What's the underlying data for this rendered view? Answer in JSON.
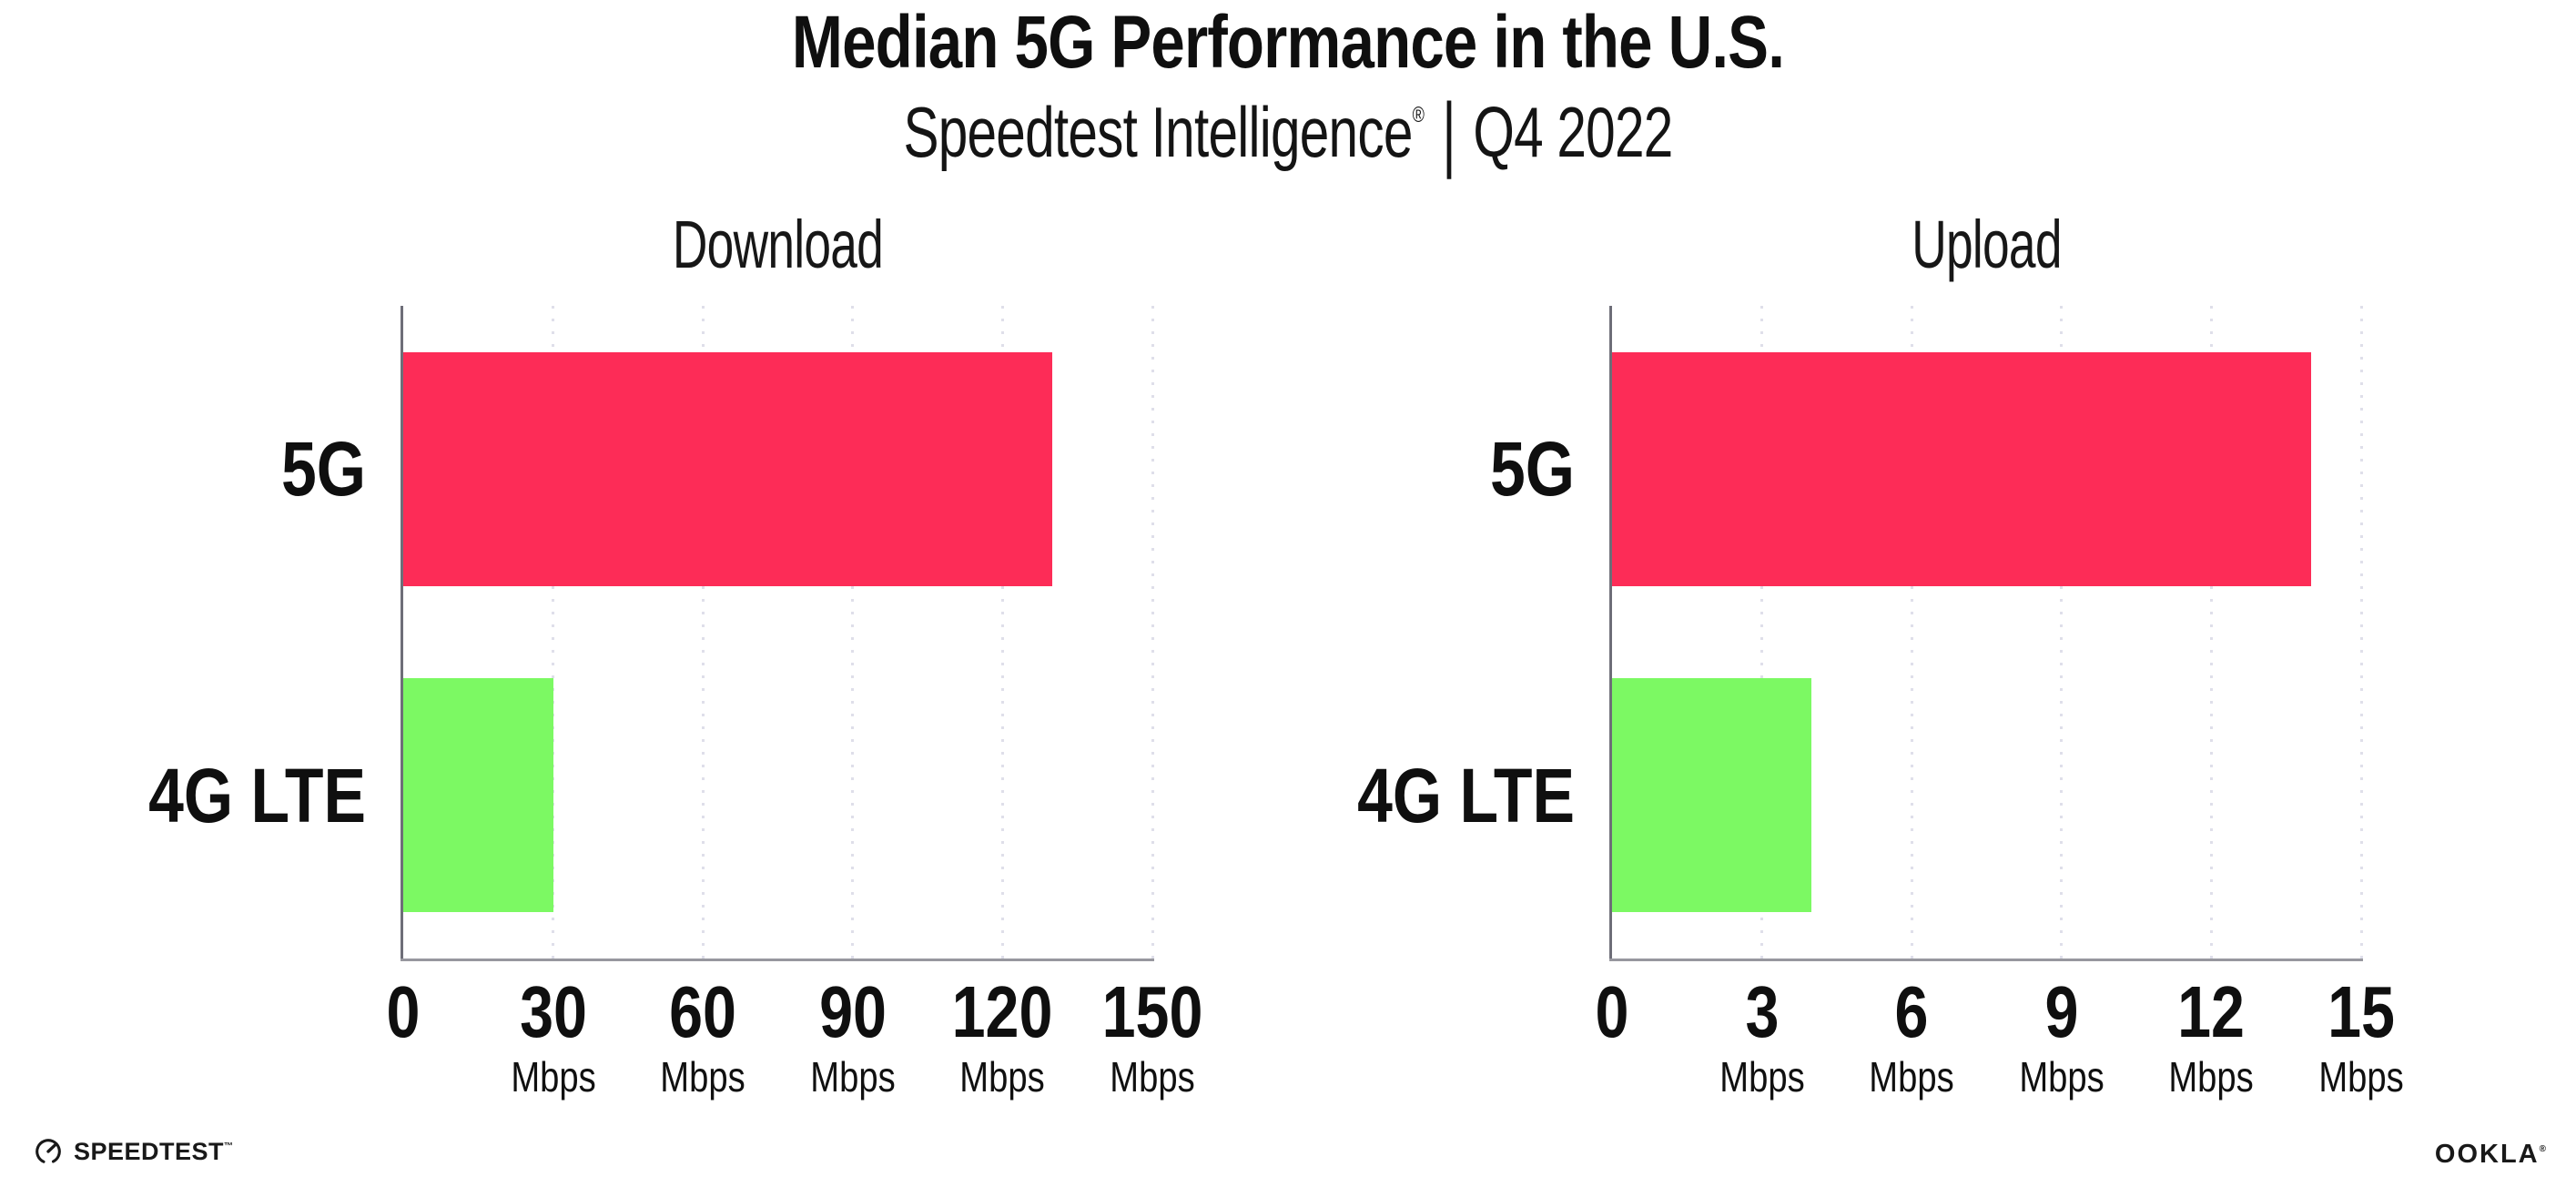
{
  "title": "Median 5G Performance in the U.S.",
  "subtitle": {
    "brand": "Speedtest Intelligence",
    "registered_mark": "®",
    "separator": "|",
    "period": "Q4 2022"
  },
  "chart_data": [
    {
      "type": "bar",
      "orientation": "horizontal",
      "title": "Download",
      "categories": [
        "5G",
        "4G LTE"
      ],
      "values": [
        130,
        30
      ],
      "unit": "Mbps",
      "xlim": [
        0,
        150
      ],
      "xticks": [
        0,
        30,
        60,
        90,
        120,
        150
      ],
      "tick_unit_label": "Mbps",
      "grid": "vertical-dotted",
      "legend": "none",
      "bar_colors": [
        "#FD2C57",
        "#7CF963"
      ]
    },
    {
      "type": "bar",
      "orientation": "horizontal",
      "title": "Upload",
      "categories": [
        "5G",
        "4G LTE"
      ],
      "values": [
        14,
        4
      ],
      "unit": "Mbps",
      "xlim": [
        0,
        15
      ],
      "xticks": [
        0,
        3,
        6,
        9,
        12,
        15
      ],
      "tick_unit_label": "Mbps",
      "grid": "vertical-dotted",
      "legend": "none",
      "bar_colors": [
        "#FD2C57",
        "#7CF963"
      ]
    }
  ],
  "footer": {
    "speedtest_wordmark": "SPEEDTEST",
    "speedtest_trademark": "™",
    "ookla_wordmark": "OOKLA",
    "ookla_registered": "®"
  },
  "colors": {
    "bar_5g": "#FD2C57",
    "bar_4g_lte": "#7CF963",
    "x_axis_line": "#97979F",
    "y_axis_line": "#6E6E78",
    "gridline_dots": "#DFDFEA",
    "text": "#0F0F0F",
    "background": "#FFFFFF"
  }
}
